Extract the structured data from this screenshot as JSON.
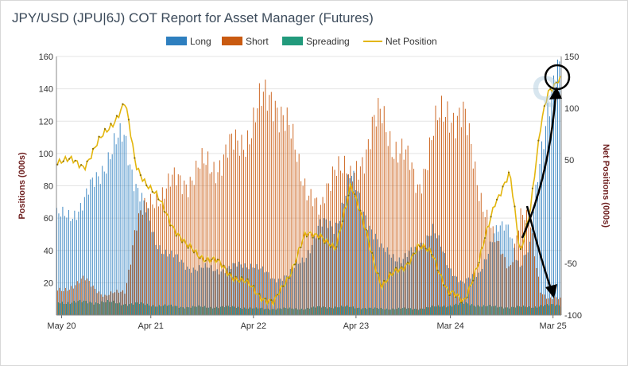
{
  "title": "JPY/USD (JPU|6J) COT Report for Asset Manager (Futures)",
  "legend": [
    {
      "key": "long",
      "label": "Long",
      "color": "#2e7fbf"
    },
    {
      "key": "short",
      "label": "Short",
      "color": "#c95a10"
    },
    {
      "key": "spreading",
      "label": "Spreading",
      "color": "#229a7c"
    },
    {
      "key": "net",
      "label": "Net Position",
      "color": "#e3b60e"
    }
  ],
  "chart_data": {
    "type": "bar",
    "title": "JPY/USD (JPU|6J) COT Report for Asset Manager (Futures)",
    "ylabel": "Positions (000s)",
    "y2label": "Net Positions (000s)",
    "ylim": [
      0,
      160
    ],
    "y2lim": [
      -100,
      150
    ],
    "yticks": [
      20,
      40,
      60,
      80,
      100,
      120,
      140,
      160
    ],
    "y2ticks": [
      -100,
      -50,
      50,
      100,
      150
    ],
    "xticks": [
      "May 20",
      "Apr 21",
      "Apr 22",
      "Apr 23",
      "Mar 24",
      "Mar 25"
    ],
    "grid": true,
    "legend_position": "top",
    "x_start": "2020-05",
    "x_end": "2025-04",
    "anchors": {
      "x": [
        2020.38,
        2020.6,
        2020.8,
        2021.0,
        2021.1,
        2021.3,
        2021.6,
        2021.9,
        2022.1,
        2022.25,
        2022.45,
        2022.6,
        2022.75,
        2022.9,
        2023.05,
        2023.2,
        2023.4,
        2023.5,
        2023.7,
        2023.85,
        2024.0,
        2024.15,
        2024.3,
        2024.45,
        2024.6,
        2024.75,
        2024.85,
        2024.95,
        2025.05,
        2025.12,
        2025.22
      ],
      "long": [
        60,
        68,
        95,
        110,
        85,
        45,
        30,
        28,
        30,
        32,
        22,
        25,
        35,
        55,
        55,
        85,
        55,
        40,
        35,
        40,
        55,
        30,
        20,
        25,
        50,
        55,
        30,
        40,
        100,
        130,
        145
      ],
      "short": [
        15,
        22,
        12,
        15,
        55,
        75,
        85,
        95,
        105,
        120,
        140,
        110,
        85,
        60,
        100,
        80,
        115,
        120,
        100,
        80,
        110,
        130,
        120,
        80,
        45,
        30,
        60,
        55,
        15,
        10,
        10
      ],
      "spreading": [
        8,
        8,
        8,
        7,
        7,
        6,
        5,
        5,
        5,
        4,
        4,
        4,
        4,
        5,
        5,
        5,
        4,
        4,
        4,
        4,
        5,
        6,
        7,
        6,
        5,
        5,
        5,
        5,
        6,
        6,
        6
      ],
      "net": [
        50,
        45,
        75,
        105,
        45,
        15,
        -35,
        -50,
        -65,
        -75,
        -90,
        -60,
        -25,
        -20,
        -40,
        30,
        -40,
        -70,
        -55,
        -35,
        -40,
        -80,
        -85,
        -50,
        10,
        35,
        -40,
        5,
        80,
        115,
        130
      ]
    }
  },
  "watermark": "Q"
}
